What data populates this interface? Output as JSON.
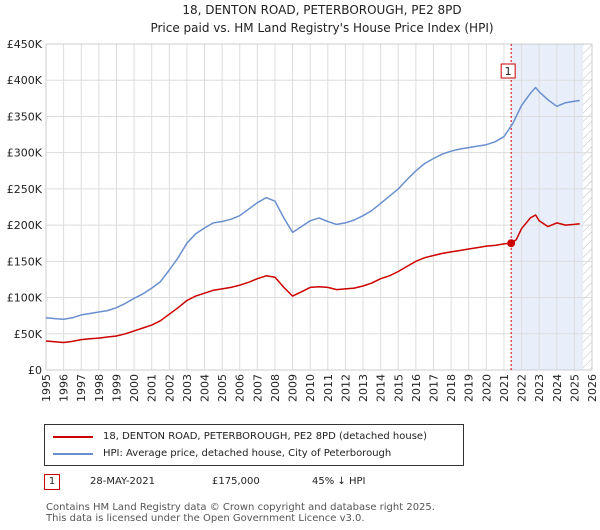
{
  "header": {
    "title_line1": "18, DENTON ROAD, PETERBOROUGH, PE2 8PD",
    "title_line2": "Price paid vs. HM Land Registry's House Price Index (HPI)"
  },
  "chart_data": {
    "type": "line",
    "title": "18, DENTON ROAD, PETERBOROUGH, PE2 8PD — Price paid vs. HM Land Registry's House Price Index (HPI)",
    "xlim": [
      1995,
      2026
    ],
    "ylim": [
      0,
      450000
    ],
    "y_ticks": [
      {
        "value": 0,
        "label": "£0"
      },
      {
        "value": 50000,
        "label": "£50K"
      },
      {
        "value": 100000,
        "label": "£100K"
      },
      {
        "value": 150000,
        "label": "£150K"
      },
      {
        "value": 200000,
        "label": "£200K"
      },
      {
        "value": 250000,
        "label": "£250K"
      },
      {
        "value": 300000,
        "label": "£300K"
      },
      {
        "value": 350000,
        "label": "£350K"
      },
      {
        "value": 400000,
        "label": "£400K"
      },
      {
        "value": 450000,
        "label": "£450K"
      }
    ],
    "x_ticks": [
      "1995",
      "1996",
      "1997",
      "1998",
      "1999",
      "2000",
      "2001",
      "2002",
      "2003",
      "2004",
      "2005",
      "2006",
      "2007",
      "2008",
      "2009",
      "2010",
      "2011",
      "2012",
      "2013",
      "2014",
      "2015",
      "2016",
      "2017",
      "2018",
      "2019",
      "2020",
      "2021",
      "2022",
      "2023",
      "2024",
      "2025",
      "2026"
    ],
    "grid": true,
    "shaded_region": {
      "from": 2021.41,
      "to": 2025.5,
      "color": "#e8eefa"
    },
    "hatched_region": {
      "from": 2025.5,
      "to": 2026
    },
    "series": [
      {
        "name": "18, DENTON ROAD, PETERBOROUGH, PE2 8PD (detached house)",
        "color": "#cc0000",
        "x": [
          1995,
          1995.5,
          1996,
          1996.5,
          1997,
          1997.5,
          1998,
          1998.5,
          1999,
          1999.5,
          2000,
          2000.5,
          2001,
          2001.5,
          2002,
          2002.5,
          2003,
          2003.5,
          2004,
          2004.5,
          2005,
          2005.5,
          2006,
          2006.5,
          2007,
          2007.5,
          2008,
          2008.5,
          2009,
          2009.5,
          2010,
          2010.5,
          2011,
          2011.5,
          2012,
          2012.5,
          2013,
          2013.5,
          2014,
          2014.5,
          2015,
          2015.5,
          2016,
          2016.5,
          2017,
          2017.5,
          2018,
          2018.5,
          2019,
          2019.5,
          2020,
          2020.5,
          2021,
          2021.41,
          2021.7,
          2022,
          2022.5,
          2022.8,
          2023,
          2023.5,
          2024,
          2024.5,
          2025,
          2025.3
        ],
        "values": [
          40000,
          39000,
          38000,
          39500,
          42000,
          43000,
          44000,
          45500,
          47000,
          50000,
          54000,
          58000,
          62000,
          68000,
          77000,
          86000,
          96000,
          102000,
          106000,
          110000,
          112000,
          114000,
          117000,
          121000,
          126000,
          130000,
          128000,
          114000,
          102000,
          108000,
          114000,
          115000,
          114000,
          111000,
          112000,
          113000,
          116000,
          120000,
          126000,
          130000,
          136000,
          143000,
          150000,
          155000,
          158000,
          161000,
          163000,
          165000,
          167000,
          169000,
          171000,
          172000,
          174000,
          175000,
          180000,
          195000,
          210000,
          214000,
          206000,
          198000,
          203000,
          200000,
          201000,
          202000
        ]
      },
      {
        "name": "HPI: Average price, detached house, City of Peterborough",
        "color": "#6a8fcf",
        "x": [
          1995,
          1995.5,
          1996,
          1996.5,
          1997,
          1997.5,
          1998,
          1998.5,
          1999,
          1999.5,
          2000,
          2000.5,
          2001,
          2001.5,
          2002,
          2002.5,
          2003,
          2003.5,
          2004,
          2004.5,
          2005,
          2005.5,
          2006,
          2006.5,
          2007,
          2007.5,
          2008,
          2008.5,
          2009,
          2009.5,
          2010,
          2010.5,
          2011,
          2011.5,
          2012,
          2012.5,
          2013,
          2013.5,
          2014,
          2014.5,
          2015,
          2015.5,
          2016,
          2016.5,
          2017,
          2017.5,
          2018,
          2018.5,
          2019,
          2019.5,
          2020,
          2020.5,
          2021,
          2021.5,
          2022,
          2022.5,
          2022.8,
          2023,
          2023.5,
          2024,
          2024.5,
          2025,
          2025.3
        ],
        "values": [
          72000,
          71000,
          70000,
          72000,
          76000,
          78000,
          80000,
          82000,
          86000,
          92000,
          99000,
          105000,
          113000,
          122000,
          138000,
          155000,
          175000,
          188000,
          196000,
          203000,
          205000,
          208000,
          213000,
          222000,
          231000,
          238000,
          233000,
          210000,
          190000,
          198000,
          206000,
          210000,
          205000,
          201000,
          203000,
          207000,
          213000,
          220000,
          230000,
          240000,
          250000,
          263000,
          275000,
          285000,
          292000,
          298000,
          302000,
          305000,
          307000,
          309000,
          311000,
          315000,
          322000,
          340000,
          365000,
          382000,
          390000,
          384000,
          373000,
          364000,
          369000,
          371000,
          372000
        ]
      }
    ],
    "sale_marker": {
      "label": "1",
      "x": 2021.41,
      "y": 175000
    }
  },
  "legend": {
    "items": [
      {
        "label": "18, DENTON ROAD, PETERBOROUGH, PE2 8PD (detached house)",
        "color": "#cc0000"
      },
      {
        "label": "HPI: Average price, detached house, City of Peterborough",
        "color": "#6a8fcf"
      }
    ]
  },
  "sale": {
    "marker": "1",
    "date": "28-MAY-2021",
    "price": "£175,000",
    "hpi_diff": "45% ↓ HPI"
  },
  "footer": {
    "line1": "Contains HM Land Registry data © Crown copyright and database right 2025.",
    "line2": "This data is licensed under the Open Government Licence v3.0."
  }
}
